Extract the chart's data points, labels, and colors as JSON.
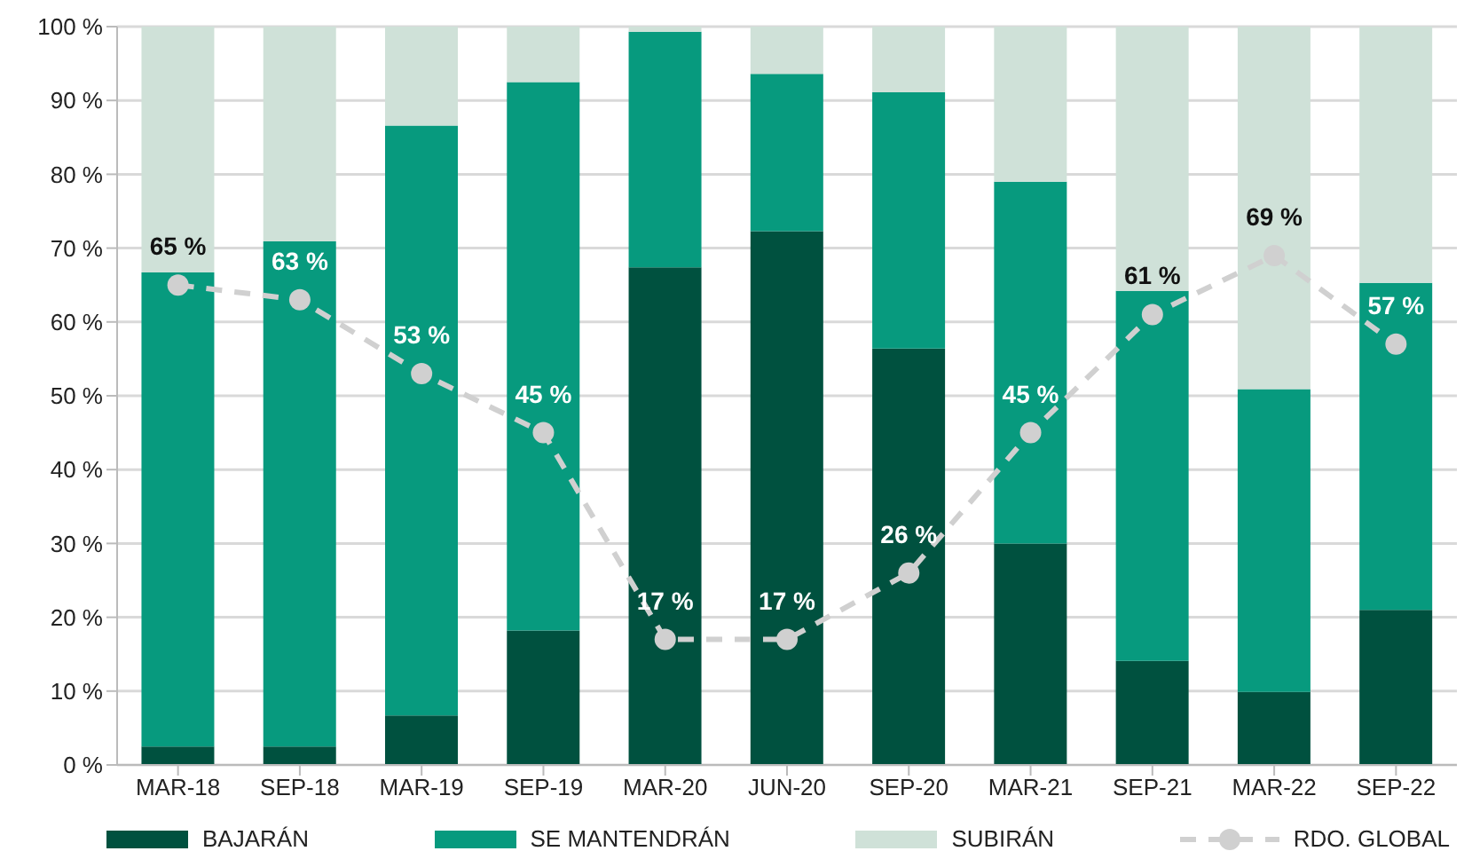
{
  "chart_data": {
    "type": "bar",
    "stacked": true,
    "categories": [
      "MAR-18",
      "SEP-18",
      "MAR-19",
      "SEP-19",
      "MAR-20",
      "JUN-20",
      "SEP-20",
      "MAR-21",
      "SEP-21",
      "MAR-22",
      "SEP-22"
    ],
    "series": [
      {
        "name": "BAJARÁN",
        "color": "#00513f",
        "values": [
          2.5,
          2.5,
          6.7,
          18.2,
          67.4,
          72.3,
          56.4,
          30.0,
          14.1,
          9.9,
          21.0
        ]
      },
      {
        "name": "SE MANTENDRÁN",
        "color": "#079a7e",
        "values": [
          64.2,
          68.4,
          79.9,
          74.3,
          31.9,
          21.3,
          34.7,
          49.0,
          50.1,
          41.0,
          44.3
        ]
      },
      {
        "name": "SUBIRÁN",
        "color": "#cfe1d8",
        "values": [
          33.3,
          29.1,
          13.4,
          7.5,
          0.7,
          6.4,
          8.9,
          21.0,
          35.8,
          49.1,
          34.7
        ]
      },
      {
        "name": "RDO. GLOBAL",
        "type": "line",
        "color": "#d0d0d0",
        "line_style": "dashed",
        "marker": "circle",
        "values": [
          65,
          63,
          53,
          45,
          17,
          17,
          26,
          45,
          61,
          69,
          57
        ],
        "value_labels": [
          "65 %",
          "63 %",
          "53 %",
          "45 %",
          "17 %",
          "17 %",
          "26 %",
          "45 %",
          "61 %",
          "69 %",
          "57 %"
        ]
      }
    ],
    "ylim": [
      0,
      100
    ],
    "yticks": [
      {
        "value": 0,
        "label": "0 %"
      },
      {
        "value": 10,
        "label": "10 %"
      },
      {
        "value": 20,
        "label": "20 %"
      },
      {
        "value": 30,
        "label": "30 %"
      },
      {
        "value": 40,
        "label": "40 %"
      },
      {
        "value": 50,
        "label": "50 %"
      },
      {
        "value": 60,
        "label": "60 %"
      },
      {
        "value": 70,
        "label": "70 %"
      },
      {
        "value": 80,
        "label": "80 %"
      },
      {
        "value": 90,
        "label": "90 %"
      },
      {
        "value": 100,
        "label": "100 %"
      }
    ],
    "grid": "y",
    "legend": "bottom"
  }
}
